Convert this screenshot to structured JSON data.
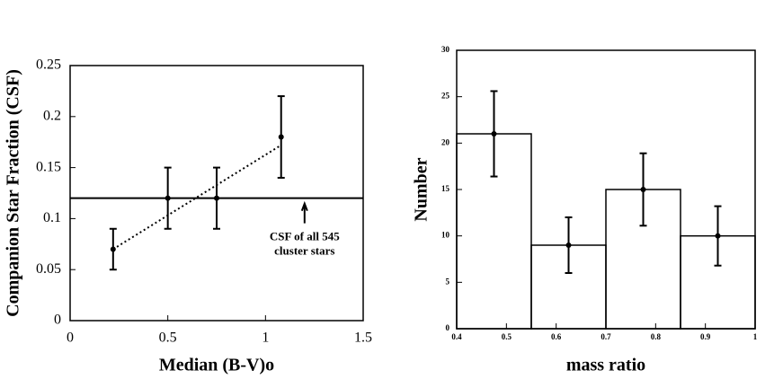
{
  "chart_data": [
    {
      "type": "scatter",
      "xlabel": "Median (B-V)o",
      "ylabel": "Companion Star Fraction (CSF)",
      "x": [
        0.22,
        0.5,
        0.75,
        1.08
      ],
      "values": [
        0.07,
        0.12,
        0.12,
        0.18
      ],
      "errors": [
        0.02,
        0.03,
        0.03,
        0.04
      ],
      "fit": {
        "x": [
          0.22,
          1.08
        ],
        "y": [
          0.07,
          0.172
        ]
      },
      "hline": 0.12,
      "annotation": [
        "CSF of all 545",
        "cluster stars"
      ],
      "xlim": [
        0,
        1.5
      ],
      "xticks": [
        0,
        0.5,
        1,
        1.5
      ],
      "ylim": [
        0,
        0.25
      ],
      "yticks": [
        0,
        0.05,
        0.1,
        0.15,
        0.2,
        0.25
      ],
      "color": "#000000"
    },
    {
      "type": "histogram",
      "xlabel": "mass ratio",
      "ylabel": "Number",
      "bins": [
        0.4,
        0.55,
        0.7,
        0.85,
        1
      ],
      "values": [
        21,
        9,
        15,
        10
      ],
      "errors": [
        4.6,
        3,
        3.9,
        3.2
      ],
      "xlim": [
        0.4,
        1
      ],
      "xticks": [
        0.4,
        0.5,
        0.6,
        0.7,
        0.8,
        0.9,
        1
      ],
      "ylim": [
        0,
        30
      ],
      "yticks": [
        0,
        5,
        10,
        15,
        20,
        25,
        30
      ],
      "color": "#000000"
    }
  ]
}
